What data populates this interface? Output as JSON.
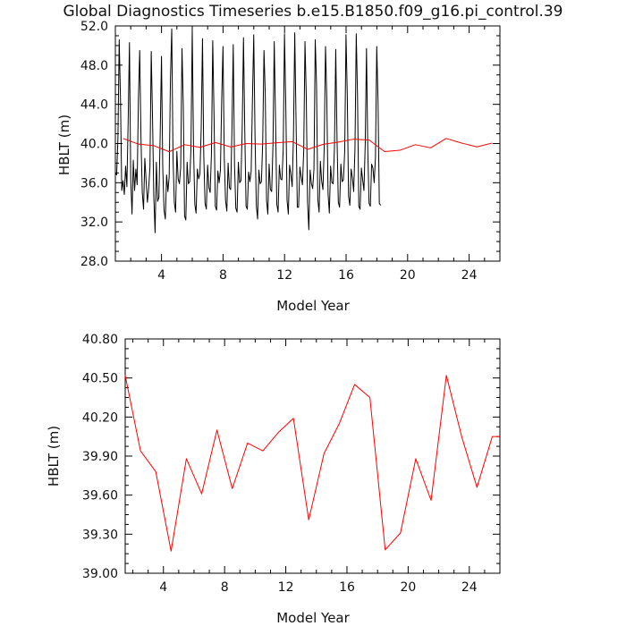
{
  "title": "Global Diagnostics Timeseries b.e15.B1850.f09_g16.pi_control.39",
  "colors": {
    "monthly": "#000000",
    "annual": "#ff0000",
    "frame": "#000000"
  },
  "chart_data": [
    {
      "type": "line",
      "title": "Global Diagnostics Timeseries b.e15.B1850.f09_g16.pi_control.39",
      "xlabel": "Model Year",
      "ylabel": "HBLT (m)",
      "xlim": [
        1,
        26
      ],
      "ylim": [
        28.0,
        52.0
      ],
      "xticks": [
        4,
        8,
        12,
        16,
        20,
        24
      ],
      "yticks": [
        28.0,
        32.0,
        36.0,
        40.0,
        44.0,
        48.0,
        52.0
      ],
      "ytick_labels": [
        "28.0",
        "32.0",
        "36.0",
        "40.0",
        "44.0",
        "48.0",
        "52.0"
      ],
      "grid": false,
      "series": [
        {
          "color": "#000000",
          "style": "monthly",
          "x_start": 1.0,
          "x_step": 0.0833,
          "values": [
            37.0,
            36.8,
            40.5,
            50.6,
            44.5,
            35.2,
            36.2,
            34.8,
            37.7,
            35.6,
            42.3,
            50.3,
            36.3,
            32.8,
            38.3,
            35.2,
            37.4,
            35.8,
            44.6,
            49.5,
            40.5,
            35.0,
            33.3,
            38.5,
            36.2,
            34.0,
            35.4,
            37.6,
            49.4,
            42.7,
            34.6,
            30.9,
            38.1,
            34.1,
            34.5,
            41.0,
            48.9,
            37.5,
            33.2,
            32.3,
            36.8,
            35.1,
            36.6,
            46.7,
            51.7,
            38.6,
            34.0,
            33.0,
            39.2,
            36.4,
            35.9,
            37.6,
            49.7,
            44.0,
            32.6,
            32.2,
            38.1,
            35.9,
            36.1,
            39.5,
            51.6,
            39.7,
            33.8,
            32.9,
            37.4,
            36.4,
            36.9,
            41.5,
            50.7,
            38.8,
            33.9,
            33.3,
            37.8,
            35.5,
            35.0,
            39.0,
            50.5,
            43.0,
            33.6,
            33.2,
            37.2,
            36.0,
            37.3,
            44.5,
            49.9,
            38.5,
            34.2,
            33.1,
            38.0,
            35.5,
            35.3,
            41.5,
            50.1,
            37.8,
            33.4,
            33.0,
            38.1,
            36.0,
            36.2,
            41.5,
            50.8,
            41.3,
            33.6,
            33.3,
            37.1,
            36.1,
            37.2,
            44.6,
            51.1,
            40.8,
            33.7,
            32.3,
            37.3,
            35.9,
            36.1,
            40.2,
            49.5,
            45.0,
            34.2,
            32.8,
            37.9,
            35.3,
            35.1,
            39.8,
            50.4,
            42.6,
            33.8,
            33.0,
            37.8,
            36.4,
            36.3,
            39.4,
            51.2,
            44.0,
            34.2,
            32.8,
            37.8,
            36.8,
            35.6,
            40.7,
            51.3,
            42.5,
            33.5,
            33.5,
            37.6,
            36.6,
            35.8,
            39.2,
            50.4,
            44.8,
            34.0,
            31.2,
            37.3,
            35.9,
            35.4,
            37.4,
            50.6,
            46.0,
            34.3,
            33.0,
            38.2,
            36.2,
            35.3,
            39.6,
            49.9,
            44.7,
            34.9,
            32.9,
            37.7,
            36.0,
            35.9,
            39.6,
            49.6,
            40.5,
            34.0,
            33.5,
            37.9,
            36.1,
            36.3,
            39.2,
            51.1,
            45.0,
            34.6,
            33.7,
            37.4,
            36.5,
            35.1,
            39.5,
            51.2,
            44.8,
            33.6,
            33.3,
            37.5,
            36.3,
            35.2,
            39.9,
            49.7,
            39.4,
            33.9,
            33.6,
            37.9,
            37.5,
            36.0,
            38.6,
            49.9,
            44.3,
            33.9,
            33.7
          ]
        },
        {
          "color": "#ff0000",
          "style": "annual",
          "x": [
            1.5,
            2.5,
            3.5,
            4.5,
            5.5,
            6.5,
            7.5,
            8.5,
            9.5,
            10.5,
            11.5,
            12.5,
            13.5,
            14.5,
            15.5,
            16.5,
            17.5,
            18.5,
            19.5,
            20.5,
            21.5,
            22.5,
            23.5,
            24.5,
            25.5
          ],
          "values": [
            40.52,
            39.94,
            39.78,
            39.17,
            39.88,
            39.61,
            40.1,
            39.65,
            40.0,
            39.94,
            40.08,
            40.19,
            39.41,
            39.92,
            40.15,
            40.45,
            40.35,
            39.18,
            39.31,
            39.88,
            39.56,
            40.52,
            40.05,
            39.66,
            40.05
          ]
        }
      ]
    },
    {
      "type": "line",
      "xlabel": "Model Year",
      "ylabel": "HBLT (m)",
      "xlim": [
        1.5,
        26
      ],
      "ylim": [
        39.0,
        40.8
      ],
      "xticks": [
        4,
        8,
        12,
        16,
        20,
        24
      ],
      "yticks": [
        39.0,
        39.3,
        39.6,
        39.9,
        40.2,
        40.5,
        40.8
      ],
      "ytick_labels": [
        "39.00",
        "39.30",
        "39.60",
        "39.90",
        "40.20",
        "40.50",
        "40.80"
      ],
      "grid": false,
      "series": [
        {
          "color": "#ff0000",
          "style": "annual",
          "x": [
            1.5,
            2.5,
            3.5,
            4.5,
            5.5,
            6.5,
            7.5,
            8.5,
            9.5,
            10.5,
            11.5,
            12.5,
            13.5,
            14.5,
            15.5,
            16.5,
            17.5,
            18.5,
            19.5,
            20.5,
            21.5,
            22.5,
            23.5,
            24.5,
            25.5,
            26.0
          ],
          "values": [
            40.52,
            39.94,
            39.78,
            39.17,
            39.88,
            39.61,
            40.1,
            39.65,
            40.0,
            39.94,
            40.08,
            40.19,
            39.41,
            39.92,
            40.15,
            40.45,
            40.35,
            39.18,
            39.31,
            39.88,
            39.56,
            40.52,
            40.05,
            39.66,
            40.05,
            40.05
          ]
        }
      ]
    }
  ]
}
